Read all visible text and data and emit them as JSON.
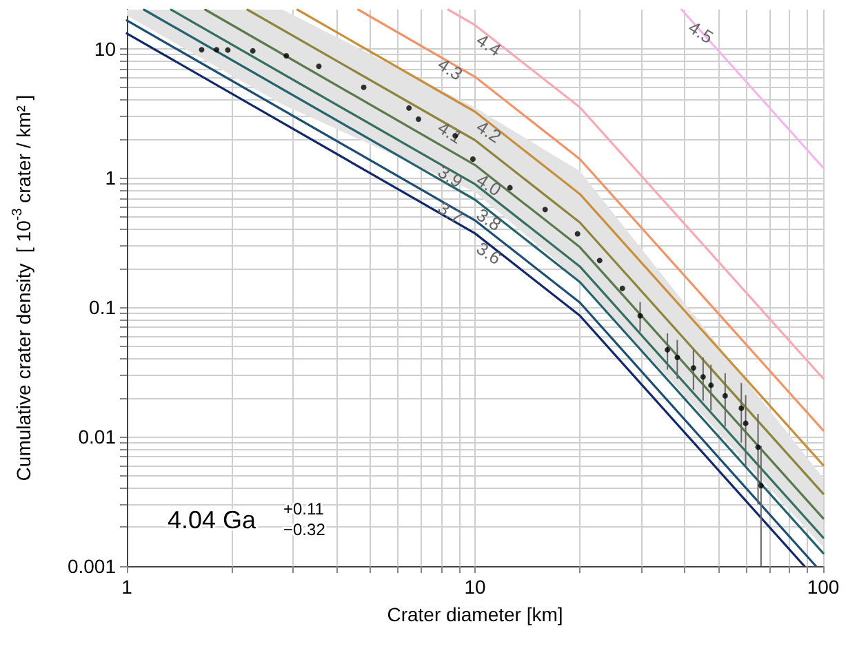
{
  "chart_data": {
    "type": "line",
    "xlabel": "Crater diameter [km]",
    "ylabel": "Cumulative crater density  [ 10$^{-3}$ crater / km² ]",
    "log": "xy",
    "grid": true,
    "xlim": [
      1,
      100
    ],
    "ylim": [
      0.001,
      20
    ],
    "xticks": [
      1,
      {
        "value": 2,
        "label": null
      },
      {
        "value": 3,
        "label": null
      },
      {
        "value": 4,
        "label": null
      },
      {
        "value": 5,
        "label": null
      },
      {
        "value": 6,
        "label": null
      },
      {
        "value": 7,
        "label": null
      },
      {
        "value": 8,
        "label": null
      },
      {
        "value": 9,
        "label": null
      },
      10,
      {
        "value": 20,
        "label": null
      },
      {
        "value": 30,
        "label": null
      },
      {
        "value": 40,
        "label": null
      },
      {
        "value": 50,
        "label": null
      },
      {
        "value": 60,
        "label": null
      },
      {
        "value": 70,
        "label": null
      },
      {
        "value": 80,
        "label": null
      },
      {
        "value": 90,
        "label": null
      },
      100
    ],
    "yticks": [
      0.001,
      {
        "value": 0.002,
        "label": null
      },
      {
        "value": 0.003,
        "label": null
      },
      {
        "value": 0.004,
        "label": null
      },
      {
        "value": 0.005,
        "label": null
      },
      {
        "value": 0.006,
        "label": null
      },
      {
        "value": 0.007,
        "label": null
      },
      {
        "value": 0.008,
        "label": null
      },
      {
        "value": 0.009,
        "label": null
      },
      0.01,
      {
        "value": 0.02,
        "label": null
      },
      {
        "value": 0.03,
        "label": null
      },
      {
        "value": 0.04,
        "label": null
      },
      {
        "value": 0.05,
        "label": null
      },
      {
        "value": 0.06,
        "label": null
      },
      {
        "value": 0.07,
        "label": null
      },
      {
        "value": 0.08,
        "label": null
      },
      {
        "value": 0.09,
        "label": null
      },
      0.1,
      {
        "value": 0.2,
        "label": null
      },
      {
        "value": 0.3,
        "label": null
      },
      {
        "value": 0.4,
        "label": null
      },
      {
        "value": 0.5,
        "label": null
      },
      {
        "value": 0.6,
        "label": null
      },
      {
        "value": 0.7,
        "label": null
      },
      {
        "value": 0.8,
        "label": null
      },
      {
        "value": 0.9,
        "label": null
      },
      1,
      {
        "value": 2,
        "label": null
      },
      {
        "value": 3,
        "label": null
      },
      {
        "value": 4,
        "label": null
      },
      {
        "value": 5,
        "label": null
      },
      {
        "value": 6,
        "label": null
      },
      {
        "value": 7,
        "label": null
      },
      {
        "value": 8,
        "label": null
      },
      {
        "value": 9,
        "label": null
      },
      10
    ],
    "annotations": [
      "4.04 Ga $^{+0.11}$$_{−0.32}$"
    ],
    "series": [
      {
        "type": "area",
        "color": "#e3e3e3",
        "x": [
          1,
          2.8,
          10,
          20,
          100
        ],
        "values": [
          null,
          null,
          null,
          null,
          null
        ],
        "lower": [
          18,
          3.7,
          0.78,
          0.16,
          0.0014
        ],
        "upper": [
          20,
          20,
          3.5,
          1.13,
          0.0048
        ]
      },
      {
        "name": "3.6",
        "color": "#13276b",
        "x": [
          1,
          10,
          20,
          88.3
        ],
        "values": [
          13.1,
          0.373,
          0.0863,
          0.001
        ]
      },
      {
        "name": "3.7",
        "color": "#1d4f75",
        "x": [
          1,
          10,
          20,
          95.3
        ],
        "values": [
          16.5,
          0.47,
          0.109,
          0.001
        ]
      },
      {
        "name": "3.8",
        "color": "#23626e",
        "x": [
          1.12,
          10,
          20,
          100
        ],
        "values": [
          20,
          0.679,
          0.157,
          0.00126
        ]
      },
      {
        "name": "3.9",
        "color": "#346f62",
        "x": [
          1.34,
          10,
          20,
          100
        ],
        "values": [
          20,
          0.895,
          0.207,
          0.00166
        ]
      },
      {
        "name": "4.0",
        "color": "#5a7a4c",
        "x": [
          1.68,
          10,
          20,
          100
        ],
        "values": [
          20,
          1.26,
          0.292,
          0.00234
        ]
      },
      {
        "name": "4.1",
        "color": "#8e853c",
        "x": [
          2.22,
          10,
          20,
          100
        ],
        "values": [
          20,
          1.96,
          0.453,
          0.00363
        ]
      },
      {
        "name": "4.2",
        "color": "#c8903c",
        "x": [
          3.09,
          10,
          20,
          100
        ],
        "values": [
          20,
          3.25,
          0.752,
          0.00603
        ]
      },
      {
        "name": "4.3",
        "color": "#f0956a",
        "x": [
          4.62,
          10,
          20,
          100
        ],
        "values": [
          20,
          6.05,
          1.4,
          0.0112
        ]
      },
      {
        "name": "4.4",
        "color": "#f7a9b4",
        "x": [
          8.38,
          10,
          20,
          100
        ],
        "values": [
          20,
          15.2,
          3.52,
          0.0282
        ]
      },
      {
        "name": "4.5",
        "color": "#f2b6ee",
        "x": [
          39.2,
          100
        ],
        "values": [
          20,
          1.2
        ]
      },
      {
        "type": "scatter",
        "color": "#000000",
        "marker": "circle",
        "x": [
          1.64,
          1.81,
          1.95,
          2.3,
          2.87,
          3.56,
          4.79,
          6.46,
          6.88,
          8.77,
          9.86,
          12.6,
          15.9,
          19.7,
          22.8,
          26.5,
          29.8,
          35.7,
          38.1,
          42.4,
          45.2,
          47.6,
          52.3,
          58.2,
          59.9,
          65,
          66.3
        ],
        "values": [
          9.8,
          9.8,
          9.75,
          9.6,
          8.8,
          7.3,
          5.02,
          3.47,
          2.85,
          2.12,
          1.4,
          0.84,
          0.57,
          0.37,
          0.23,
          0.14,
          0.086,
          0.047,
          0.041,
          0.034,
          0.029,
          0.025,
          0.0207,
          0.0166,
          0.0127,
          0.0083,
          0.0042
        ],
        "errors": [
          null,
          null,
          null,
          null,
          null,
          null,
          null,
          null,
          null,
          null,
          null,
          null,
          null,
          null,
          null,
          null,
          [
            0.065,
            0.11
          ],
          [
            0.033,
            0.063
          ],
          [
            0.028,
            0.056
          ],
          [
            0.023,
            0.047
          ],
          [
            0.019,
            0.041
          ],
          [
            0.016,
            0.036
          ],
          [
            0.012,
            0.031
          ],
          [
            0.009,
            0.026
          ],
          [
            0.006,
            0.021
          ],
          [
            0.003,
            0.015
          ],
          [
            0.001,
            0.0085
          ]
        ]
      }
    ]
  }
}
